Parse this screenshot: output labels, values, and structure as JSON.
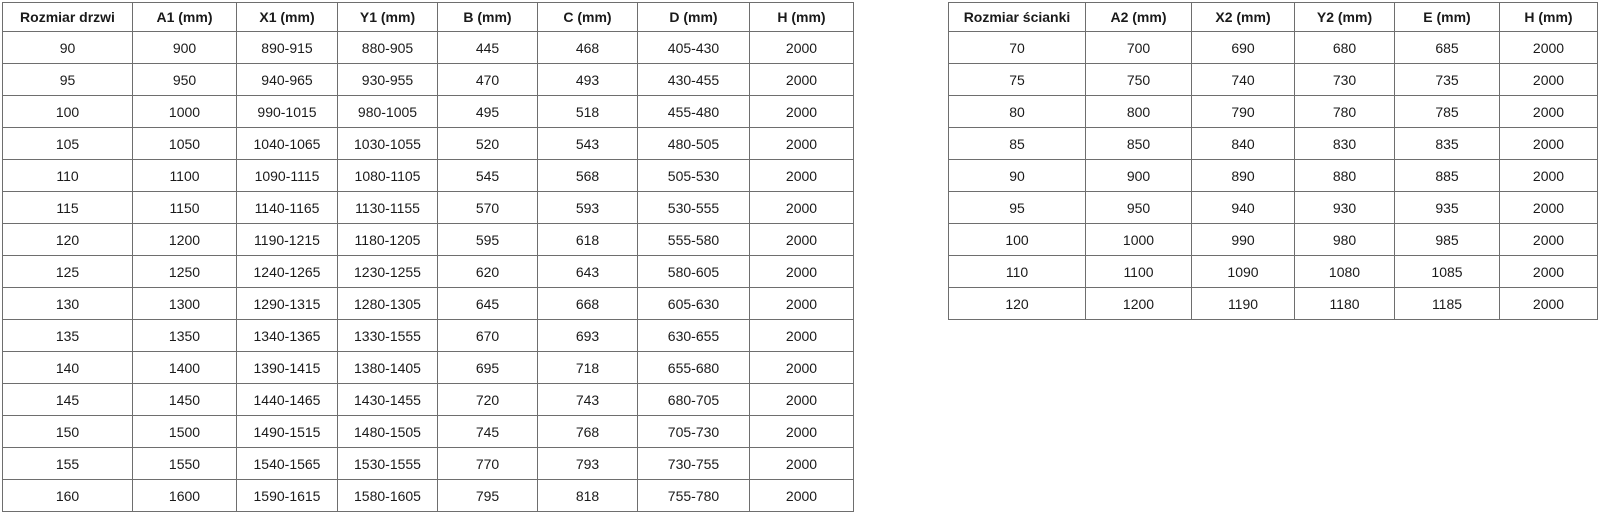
{
  "colors": {
    "background": "#ffffff",
    "table_border": "#6e6e6e",
    "text": "#1a1a1a"
  },
  "tables": [
    {
      "name": "door-size-table",
      "headers": [
        "Rozmiar drzwi",
        "A1 (mm)",
        "X1 (mm)",
        "Y1 (mm)",
        "B (mm)",
        "C (mm)",
        "D (mm)",
        "H (mm)"
      ],
      "rows": [
        [
          "90",
          "900",
          "890-915",
          "880-905",
          "445",
          "468",
          "405-430",
          "2000"
        ],
        [
          "95",
          "950",
          "940-965",
          "930-955",
          "470",
          "493",
          "430-455",
          "2000"
        ],
        [
          "100",
          "1000",
          "990-1015",
          "980-1005",
          "495",
          "518",
          "455-480",
          "2000"
        ],
        [
          "105",
          "1050",
          "1040-1065",
          "1030-1055",
          "520",
          "543",
          "480-505",
          "2000"
        ],
        [
          "110",
          "1100",
          "1090-1115",
          "1080-1105",
          "545",
          "568",
          "505-530",
          "2000"
        ],
        [
          "115",
          "1150",
          "1140-1165",
          "1130-1155",
          "570",
          "593",
          "530-555",
          "2000"
        ],
        [
          "120",
          "1200",
          "1190-1215",
          "1180-1205",
          "595",
          "618",
          "555-580",
          "2000"
        ],
        [
          "125",
          "1250",
          "1240-1265",
          "1230-1255",
          "620",
          "643",
          "580-605",
          "2000"
        ],
        [
          "130",
          "1300",
          "1290-1315",
          "1280-1305",
          "645",
          "668",
          "605-630",
          "2000"
        ],
        [
          "135",
          "1350",
          "1340-1365",
          "1330-1555",
          "670",
          "693",
          "630-655",
          "2000"
        ],
        [
          "140",
          "1400",
          "1390-1415",
          "1380-1405",
          "695",
          "718",
          "655-680",
          "2000"
        ],
        [
          "145",
          "1450",
          "1440-1465",
          "1430-1455",
          "720",
          "743",
          "680-705",
          "2000"
        ],
        [
          "150",
          "1500",
          "1490-1515",
          "1480-1505",
          "745",
          "768",
          "705-730",
          "2000"
        ],
        [
          "155",
          "1550",
          "1540-1565",
          "1530-1555",
          "770",
          "793",
          "730-755",
          "2000"
        ],
        [
          "160",
          "1600",
          "1590-1615",
          "1580-1605",
          "795",
          "818",
          "755-780",
          "2000"
        ]
      ]
    },
    {
      "name": "wall-size-table",
      "headers": [
        "Rozmiar ścianki",
        "A2 (mm)",
        "X2 (mm)",
        "Y2 (mm)",
        "E (mm)",
        "H (mm)"
      ],
      "rows": [
        [
          "70",
          "700",
          "690",
          "680",
          "685",
          "2000"
        ],
        [
          "75",
          "750",
          "740",
          "730",
          "735",
          "2000"
        ],
        [
          "80",
          "800",
          "790",
          "780",
          "785",
          "2000"
        ],
        [
          "85",
          "850",
          "840",
          "830",
          "835",
          "2000"
        ],
        [
          "90",
          "900",
          "890",
          "880",
          "885",
          "2000"
        ],
        [
          "95",
          "950",
          "940",
          "930",
          "935",
          "2000"
        ],
        [
          "100",
          "1000",
          "990",
          "980",
          "985",
          "2000"
        ],
        [
          "110",
          "1100",
          "1090",
          "1080",
          "1085",
          "2000"
        ],
        [
          "120",
          "1200",
          "1190",
          "1180",
          "1185",
          "2000"
        ]
      ]
    }
  ]
}
